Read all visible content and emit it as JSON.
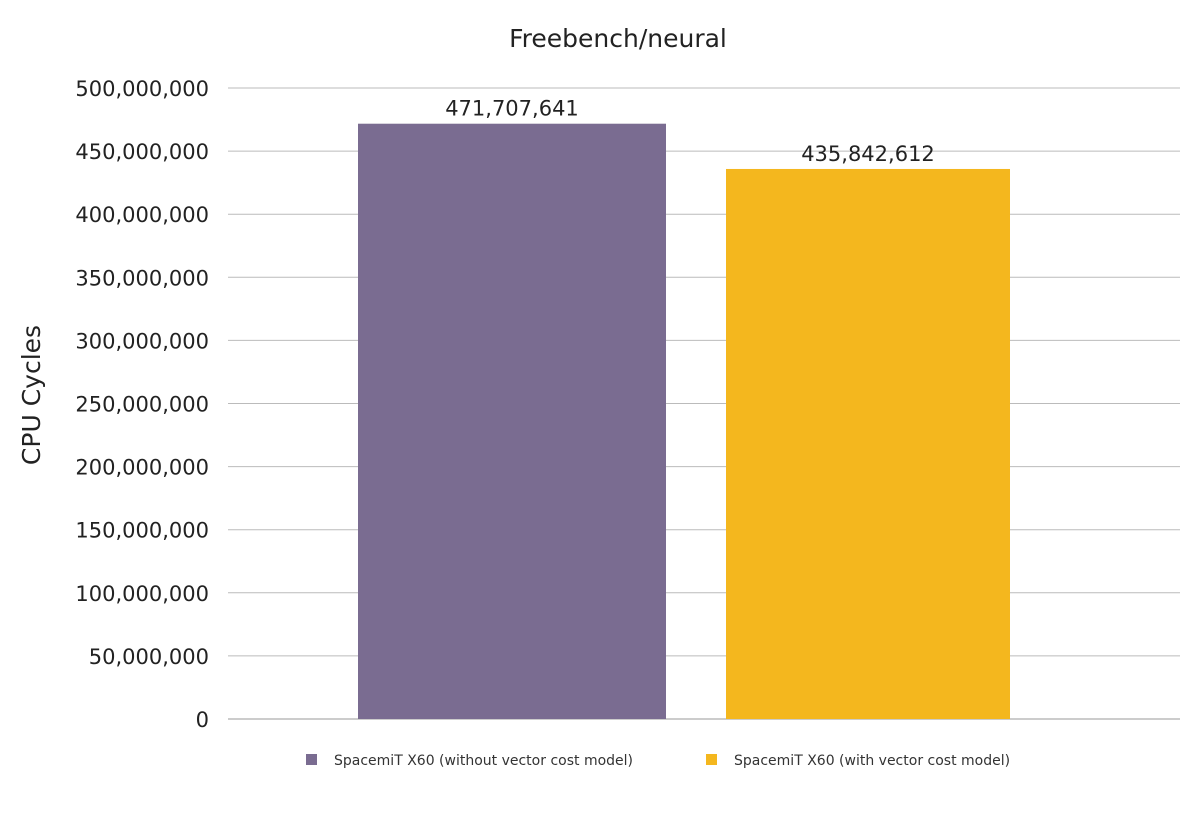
{
  "chart_data": {
    "type": "bar",
    "title": "Freebench/neural",
    "xlabel": "",
    "ylabel": "CPU Cycles",
    "ylim": [
      0,
      500000000
    ],
    "yticks": [
      0,
      50000000,
      100000000,
      150000000,
      200000000,
      250000000,
      300000000,
      350000000,
      400000000,
      450000000,
      500000000
    ],
    "ytick_labels": [
      "0",
      "50,000,000",
      "100,000,000",
      "150,000,000",
      "200,000,000",
      "250,000,000",
      "300,000,000",
      "350,000,000",
      "400,000,000",
      "450,000,000",
      "500,000,000"
    ],
    "grid": true,
    "legend_position": "bottom",
    "series": [
      {
        "name": "SpacemiT X60 (without vector cost model)",
        "value": 471707641,
        "label": "471,707,641",
        "color": "#7a6c91"
      },
      {
        "name": "SpacemiT X60 (with vector cost model)",
        "value": 435842612,
        "label": "435,842,612",
        "color": "#f4b71e"
      }
    ]
  }
}
